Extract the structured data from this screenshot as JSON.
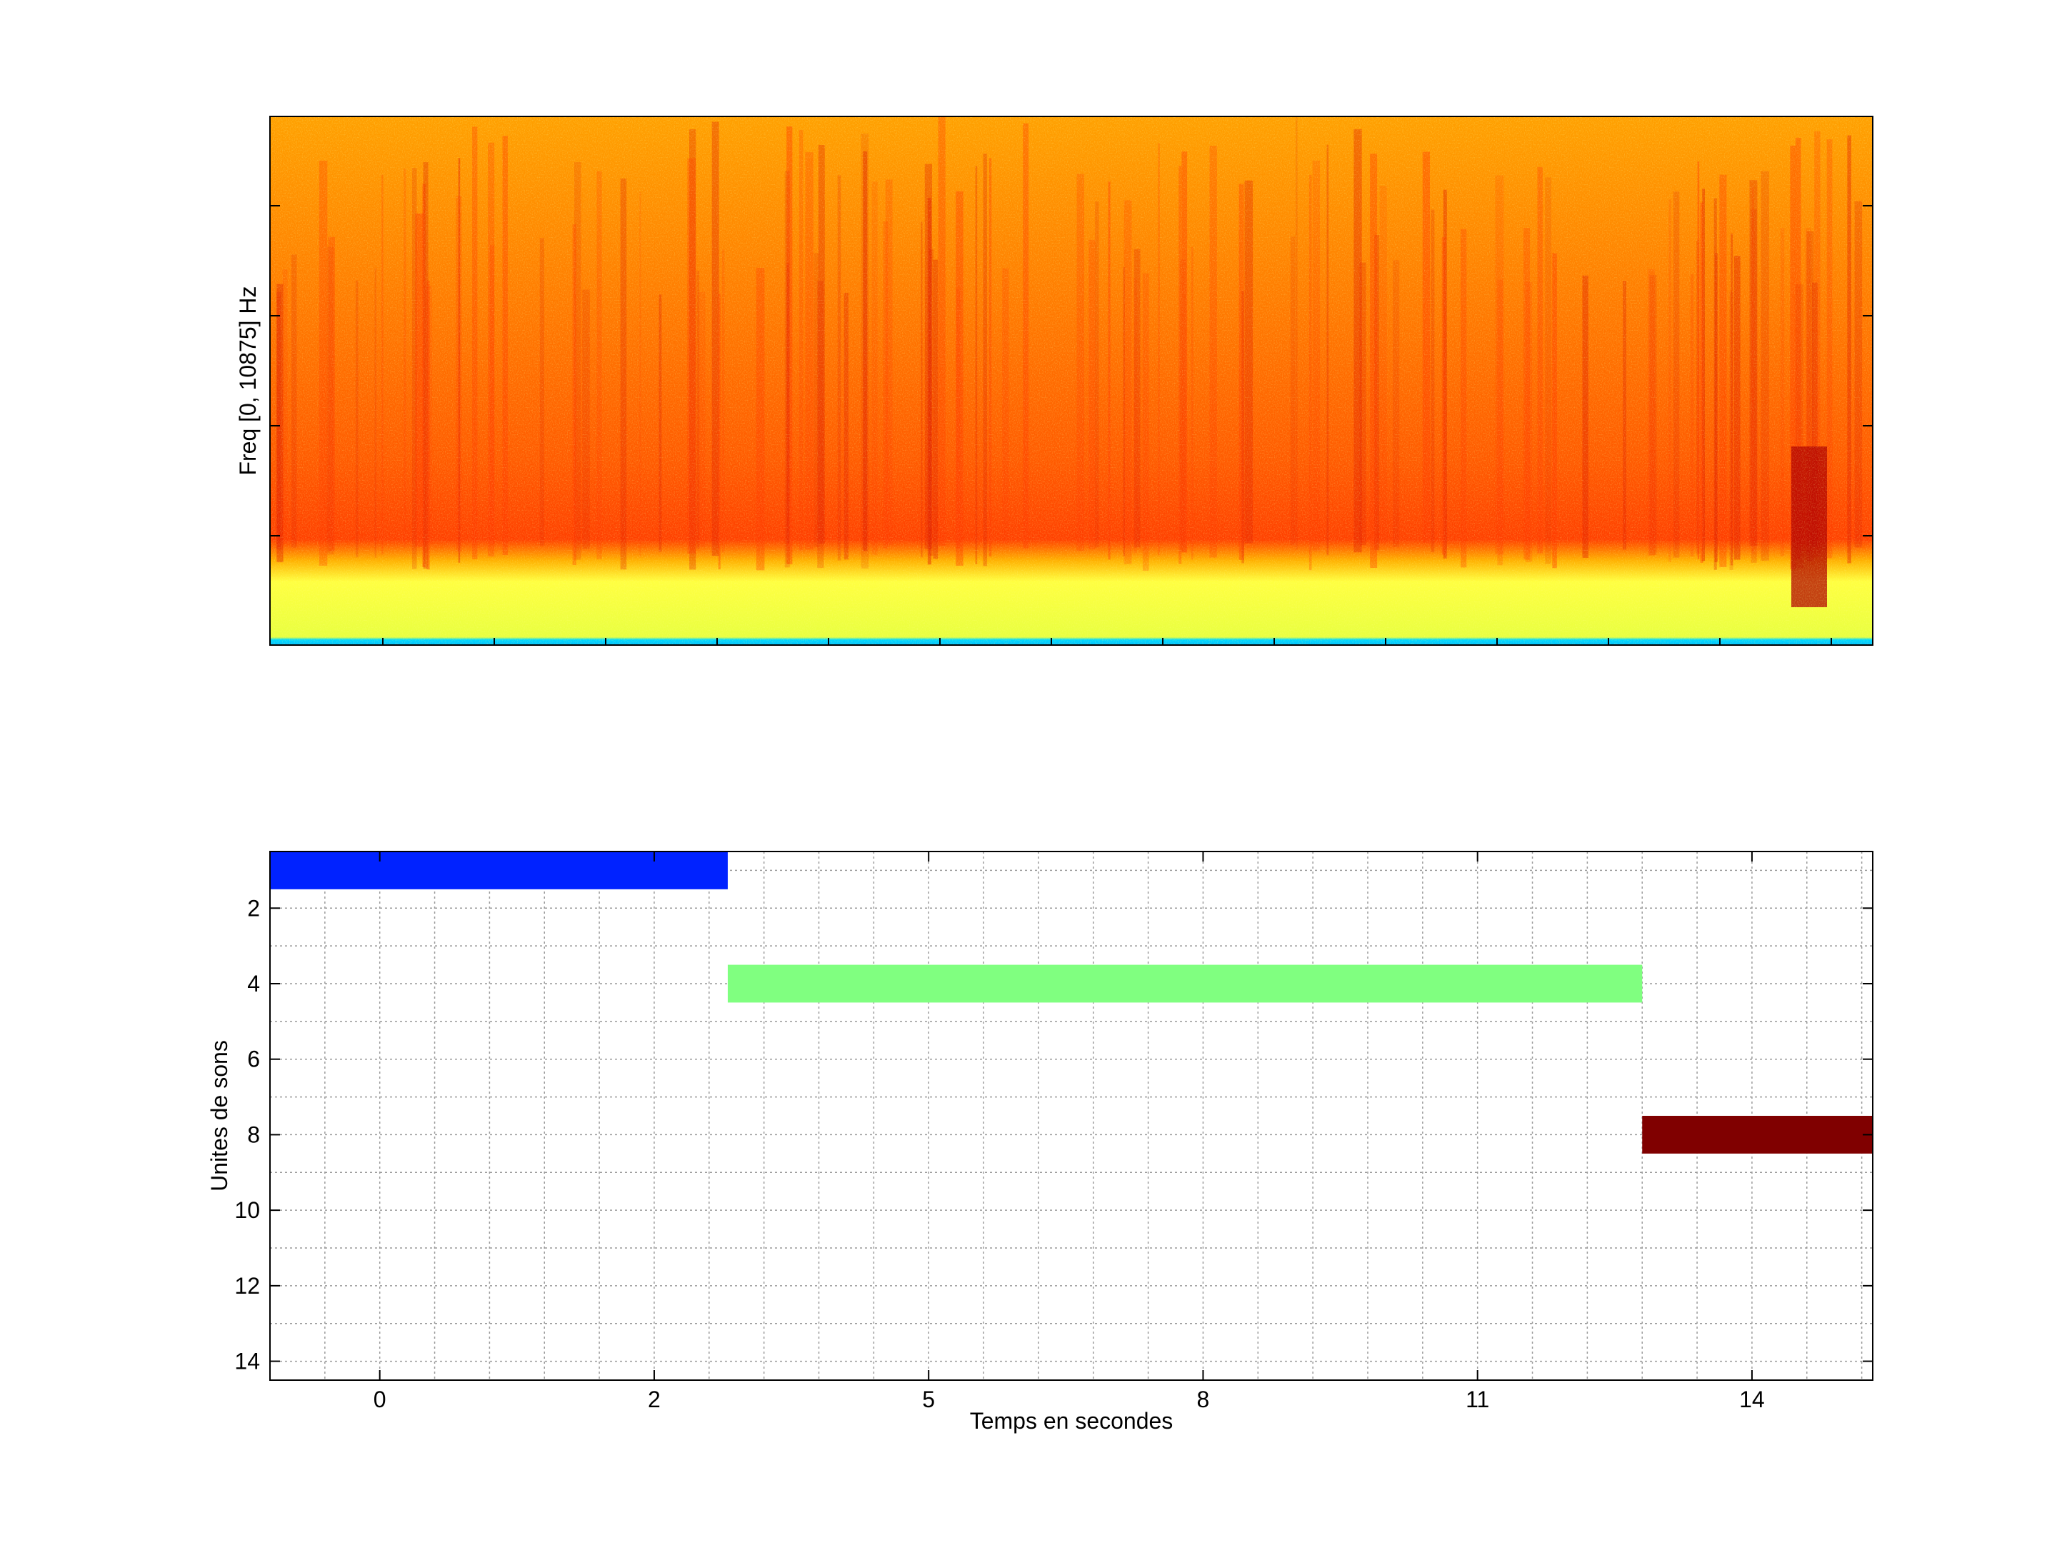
{
  "chart_data": [
    {
      "type": "heatmap",
      "title": "",
      "ylabel": "Freq [0, 10875] Hz",
      "xlabel": "",
      "yrange": [
        0,
        10875
      ],
      "colormap": [
        "#00e0ff",
        "#ffff40",
        "#ffd000",
        "#ffa000",
        "#ff5000",
        "#e01000",
        "#a00000"
      ]
    },
    {
      "type": "bar",
      "orientation": "horizontal",
      "title": "",
      "xlabel": "Temps en secondes",
      "ylabel": "Unites de sons",
      "xlim": [
        -1,
        13.6
      ],
      "ylim": [
        14.5,
        0.5
      ],
      "x_ticks": [
        0,
        2,
        5,
        8,
        11,
        14
      ],
      "x_tick_labels": [
        "0",
        "2",
        "5",
        "8",
        "11",
        "14"
      ],
      "x_tick_positions": [
        0,
        2.5,
        5,
        7.5,
        10,
        12.5
      ],
      "y_ticks": [
        2,
        4,
        6,
        8,
        10,
        12,
        14
      ],
      "grid": true,
      "segments": [
        {
          "unit": 1,
          "start": -1,
          "end": 3.17,
          "color": "#0022ff"
        },
        {
          "unit": 4,
          "start": 3.17,
          "end": 11.5,
          "color": "#80ff80"
        },
        {
          "unit": 8,
          "start": 11.5,
          "end": 13.6,
          "color": "#800000"
        }
      ]
    }
  ]
}
